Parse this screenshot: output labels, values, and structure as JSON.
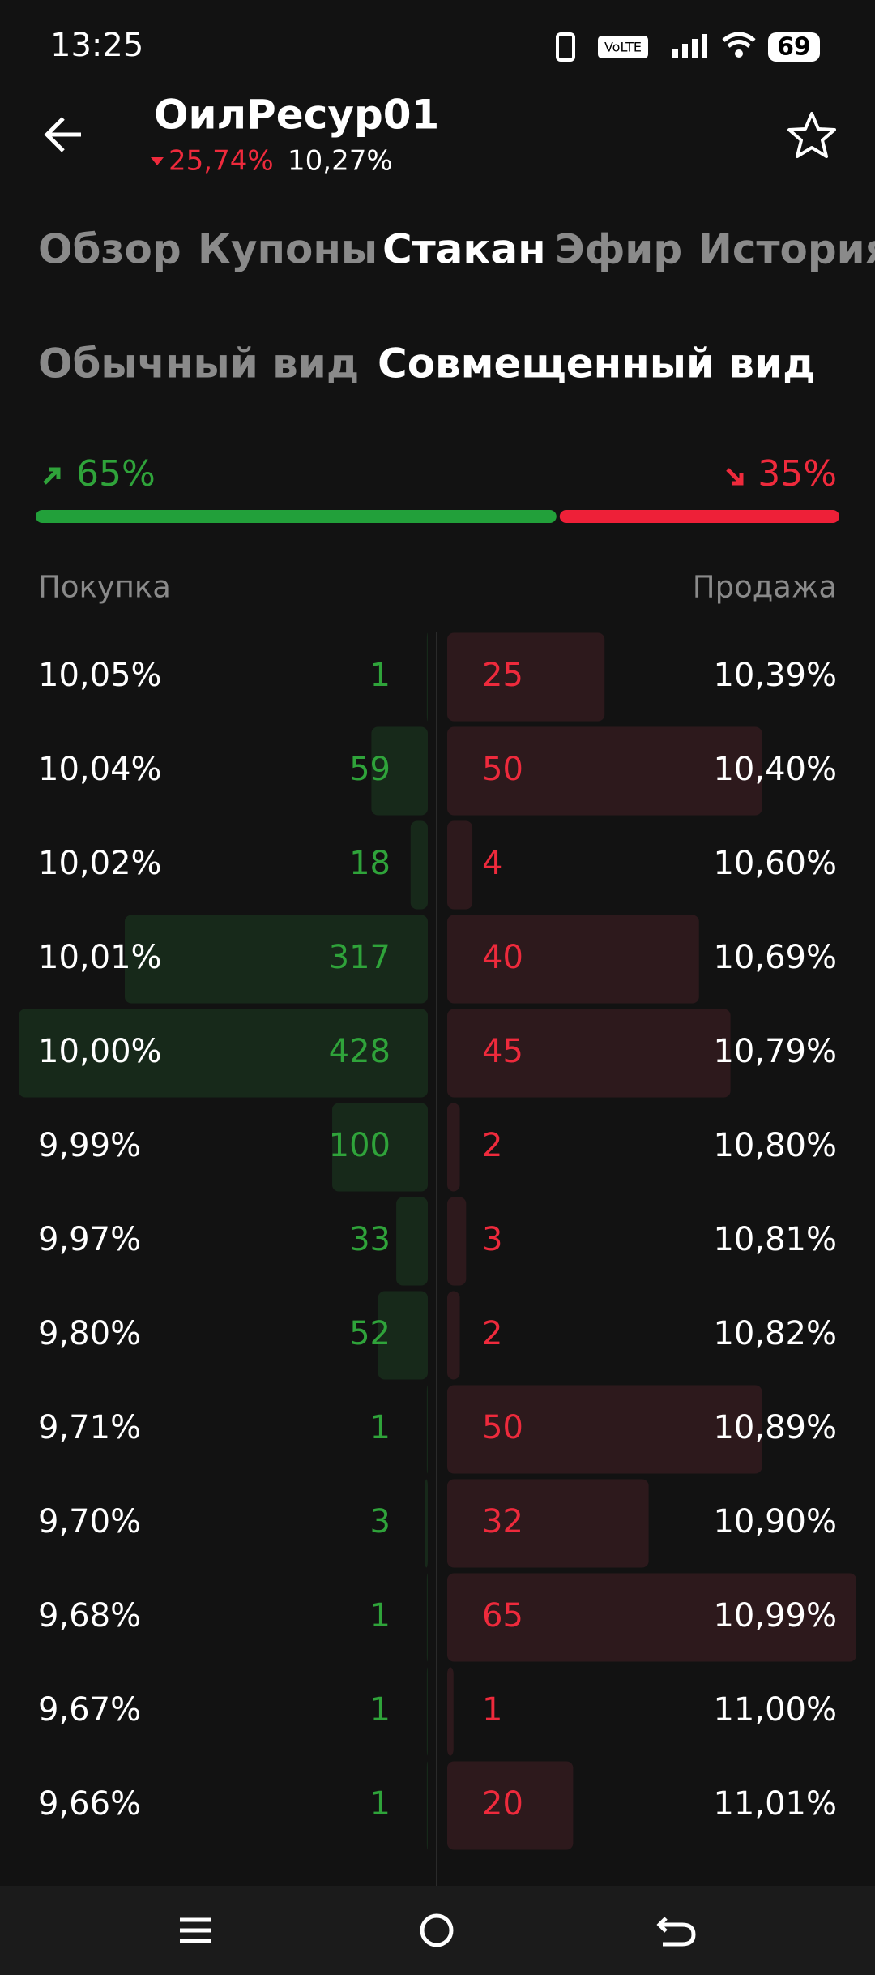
{
  "status_bar": {
    "time": "13:25",
    "battery": "69"
  },
  "header": {
    "title": "ОилРесур01",
    "change": "25,74%",
    "yield": "10,27%"
  },
  "tabs": [
    "Обзор",
    "Купоны",
    "Стакан",
    "Эфир",
    "История"
  ],
  "view_tabs": [
    "Обычный вид",
    "Совмещенный вид"
  ],
  "balance": {
    "buy": {
      "value": 65,
      "label": "65%"
    },
    "sell": {
      "value": 35,
      "label": "35%"
    }
  },
  "order_book": {
    "buy_label": "Покупка",
    "sell_label": "Продажа",
    "rows": [
      {
        "buy_price": "10,05%",
        "buy_qty": 1,
        "sell_qty": 25,
        "sell_price": "10,39%"
      },
      {
        "buy_price": "10,04%",
        "buy_qty": 59,
        "sell_qty": 50,
        "sell_price": "10,40%"
      },
      {
        "buy_price": "10,02%",
        "buy_qty": 18,
        "sell_qty": 4,
        "sell_price": "10,60%"
      },
      {
        "buy_price": "10,01%",
        "buy_qty": 317,
        "sell_qty": 40,
        "sell_price": "10,69%"
      },
      {
        "buy_price": "10,00%",
        "buy_qty": 428,
        "sell_qty": 45,
        "sell_price": "10,79%"
      },
      {
        "buy_price": "9,99%",
        "buy_qty": 100,
        "sell_qty": 2,
        "sell_price": "10,80%"
      },
      {
        "buy_price": "9,97%",
        "buy_qty": 33,
        "sell_qty": 3,
        "sell_price": "10,81%"
      },
      {
        "buy_price": "9,80%",
        "buy_qty": 52,
        "sell_qty": 2,
        "sell_price": "10,82%"
      },
      {
        "buy_price": "9,71%",
        "buy_qty": 1,
        "sell_qty": 50,
        "sell_price": "10,89%"
      },
      {
        "buy_price": "9,70%",
        "buy_qty": 3,
        "sell_qty": 32,
        "sell_price": "10,90%"
      },
      {
        "buy_price": "9,68%",
        "buy_qty": 1,
        "sell_qty": 65,
        "sell_price": "10,99%"
      },
      {
        "buy_price": "9,67%",
        "buy_qty": 1,
        "sell_qty": 1,
        "sell_price": "11,00%"
      },
      {
        "buy_price": "9,66%",
        "buy_qty": 1,
        "sell_qty": 20,
        "sell_price": "11,01%"
      }
    ]
  }
}
